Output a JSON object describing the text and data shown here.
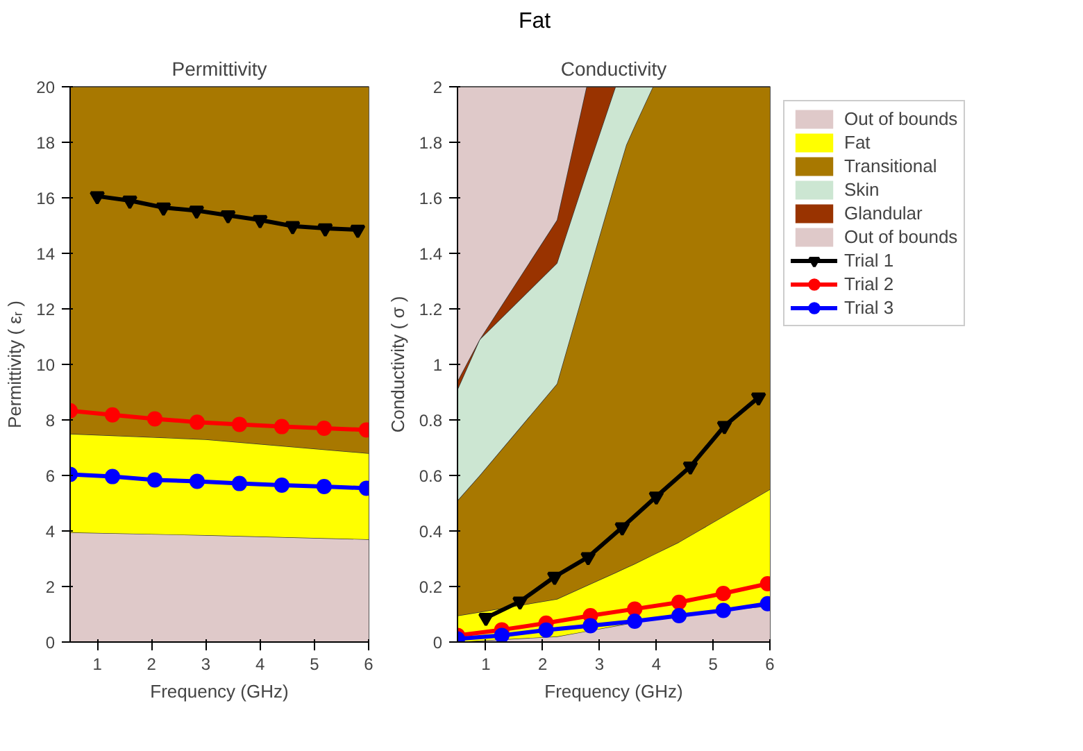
{
  "chart_data": [
    {
      "type": "area",
      "stacked": true,
      "annotations": [
        "Fat"
      ],
      "title": "Permittivity",
      "xlabel": "Frequency (GHz)",
      "ylabel": "Permittivity ( εᵣ )",
      "x": [
        0.5,
        3,
        6
      ],
      "xlim": [
        0.5,
        6
      ],
      "xticks": [
        1,
        2,
        3,
        4,
        5,
        6
      ],
      "ylim": [
        0,
        20
      ],
      "yticks": [
        0,
        2,
        4,
        6,
        8,
        10,
        12,
        14,
        16,
        18,
        20
      ],
      "legend": false,
      "series": [
        {
          "color": "#dfc9c9",
          "values": [
            3.95,
            3.85,
            3.7
          ]
        },
        {
          "color": "#ffff00",
          "values": [
            3.55,
            3.45,
            3.1
          ]
        },
        {
          "color": "#a87800",
          "values": [
            12.5,
            12.7,
            13.2
          ]
        },
        {
          "type": "line",
          "color": "#000000",
          "marker": "triangle",
          "x": [
            1.0,
            1.6,
            2.22,
            2.83,
            3.41,
            4.0,
            4.6,
            5.2,
            5.8
          ],
          "values": [
            16.06,
            15.9,
            15.65,
            15.54,
            15.37,
            15.2,
            14.98,
            14.9,
            14.85
          ]
        },
        {
          "type": "line",
          "color": "#ff0000",
          "marker": "circle",
          "x": [
            0.5,
            1.28,
            2.06,
            2.84,
            3.62,
            4.4,
            5.18,
            5.96
          ],
          "values": [
            8.33,
            8.18,
            8.04,
            7.92,
            7.84,
            7.76,
            7.7,
            7.64
          ]
        },
        {
          "type": "line",
          "color": "#0000ff",
          "marker": "circle",
          "x": [
            0.5,
            1.28,
            2.06,
            2.84,
            3.62,
            4.4,
            5.18,
            5.96
          ],
          "values": [
            6.04,
            5.96,
            5.84,
            5.79,
            5.71,
            5.65,
            5.6,
            5.54
          ]
        }
      ]
    },
    {
      "type": "area",
      "stacked": true,
      "title": "Conductivity",
      "xlabel": "Frequency (GHz)",
      "ylabel": "Conductivity ( σ )",
      "x": [
        0.5,
        0.89,
        2.25,
        2.77,
        3.28,
        3.47,
        3.6,
        3.94,
        4.4,
        6
      ],
      "xlim": [
        0.5,
        6
      ],
      "xticks": [
        1,
        2,
        3,
        4,
        5,
        6
      ],
      "ylim": [
        0,
        2
      ],
      "yticks": [
        0,
        0.2,
        0.4,
        0.6,
        0.8,
        1,
        1.2,
        1.4,
        1.6,
        1.8,
        2
      ],
      "legend": "right",
      "series": [
        {
          "name": "Out of bounds",
          "color": "#dfc9c9",
          "values": [
            0,
            0.005,
            0.02,
            0.039,
            0.058,
            0.065,
            0.07,
            0.083,
            0.1,
            0.13
          ]
        },
        {
          "name": "Fat",
          "color": "#ffff00",
          "values": [
            0.095,
            0.103,
            0.135,
            0.164,
            0.192,
            0.203,
            0.21,
            0.231,
            0.26,
            0.42
          ]
        },
        {
          "name": "Transitional",
          "color": "#a87800",
          "values": [
            0.415,
            0.492,
            0.775,
            1.097,
            1.41,
            1.522,
            1.57,
            1.686,
            1.64,
            1.45
          ]
        },
        {
          "name": "Skin",
          "color": "#cce6d2",
          "values": [
            0.4,
            0.49,
            0.435,
            0.39,
            0.34,
            0.21,
            0.15,
            0,
            0,
            0
          ]
        },
        {
          "name": "Glandular",
          "color": "#993300",
          "values": [
            0.03,
            0,
            0.155,
            0.31,
            0,
            0,
            0,
            0,
            0,
            0
          ]
        },
        {
          "name": "Out of bounds",
          "color": "#dfc9c9",
          "values": [
            1.06,
            0.91,
            0.48,
            0,
            0,
            0,
            0,
            0,
            0,
            0
          ]
        },
        {
          "type": "line",
          "name": "Trial 1",
          "color": "#000000",
          "marker": "triangle",
          "x": [
            1.0,
            1.6,
            2.21,
            2.8,
            3.4,
            4.0,
            4.6,
            5.2,
            5.8
          ],
          "values": [
            0.087,
            0.146,
            0.235,
            0.306,
            0.413,
            0.524,
            0.632,
            0.778,
            0.881
          ]
        },
        {
          "type": "line",
          "name": "Trial 2",
          "color": "#ff0000",
          "marker": "circle",
          "x": [
            0.5,
            1.28,
            2.06,
            2.84,
            3.62,
            4.4,
            5.18,
            5.96
          ],
          "values": [
            0.024,
            0.044,
            0.068,
            0.095,
            0.119,
            0.143,
            0.175,
            0.21
          ]
        },
        {
          "type": "line",
          "name": "Trial 3",
          "color": "#0000ff",
          "marker": "circle",
          "x": [
            0.5,
            1.28,
            2.06,
            2.84,
            3.62,
            4.4,
            5.18,
            5.96
          ],
          "values": [
            0.011,
            0.024,
            0.043,
            0.059,
            0.075,
            0.095,
            0.114,
            0.138
          ]
        }
      ]
    }
  ]
}
